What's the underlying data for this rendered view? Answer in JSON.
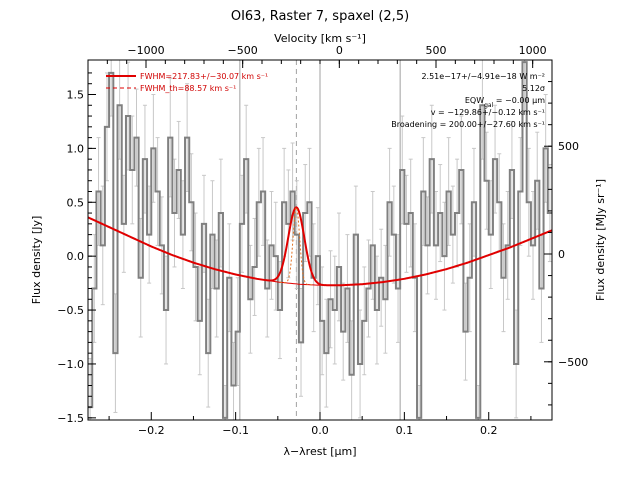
{
  "chart_data": {
    "type": "line",
    "title": "OI63, Raster 7, spaxel (2,5)",
    "xlabel": "λ−λrest [μm]",
    "ylabel": "Flux density [Jy]",
    "y2label": "Flux density [MJy sr⁻¹]",
    "x2label": "Velocity [km s⁻¹]",
    "xlim": [
      -0.275,
      0.275
    ],
    "ylim": [
      -1.52,
      1.82
    ],
    "y2lim": [
      -770,
      900
    ],
    "x2lim": [
      -1300,
      1100
    ],
    "x_ticks": [
      -0.2,
      -0.1,
      0.0,
      0.1,
      0.2
    ],
    "x_tick_labels": [
      "−0.2",
      "−0.1",
      "0.0",
      "0.1",
      "0.2"
    ],
    "y_ticks": [
      -1.5,
      -1.0,
      -0.5,
      0.0,
      0.5,
      1.0,
      1.5
    ],
    "y_tick_labels": [
      "−1.5",
      "−1.0",
      "−0.5",
      "0.0",
      "0.5",
      "1.0",
      "1.5"
    ],
    "y2_ticks": [
      -500,
      0,
      500
    ],
    "y2_tick_labels": [
      "−500",
      "0",
      "500"
    ],
    "x2_ticks": [
      -1000,
      -500,
      0,
      500,
      1000
    ],
    "x2_tick_labels": [
      "−1000",
      "−500",
      "0",
      "500",
      "1000"
    ],
    "vlines": [
      -0.095,
      0.0,
      0.095
    ],
    "dashed_vline": -0.028,
    "annotations": [
      "2.51e−17+/−4.91e−18 W m⁻²",
      "5.12σ",
      "EQW = −0.00 μm",
      "v = −129.86+/−0.12 km s⁻¹",
      "Broadening = 200.00+/−27.60 km s⁻¹"
    ],
    "eqw_subscript": "gal",
    "legend": [
      {
        "label": "FWHM=217.83+/−30.07 km s⁻¹",
        "style": "solid",
        "color": "#e00000"
      },
      {
        "label": "FWHM_th=88.57 km s⁻¹",
        "style": "dashed",
        "color": "#e00000"
      }
    ],
    "series": [
      {
        "style": "histogram",
        "color": "#808080",
        "x": [
          -0.275,
          -0.27,
          -0.265,
          -0.26,
          -0.255,
          -0.25,
          -0.245,
          -0.24,
          -0.235,
          -0.23,
          -0.225,
          -0.22,
          -0.215,
          -0.21,
          -0.205,
          -0.2,
          -0.195,
          -0.19,
          -0.185,
          -0.18,
          -0.175,
          -0.17,
          -0.165,
          -0.16,
          -0.155,
          -0.15,
          -0.145,
          -0.14,
          -0.135,
          -0.13,
          -0.125,
          -0.12,
          -0.115,
          -0.11,
          -0.105,
          -0.1,
          -0.095,
          -0.09,
          -0.085,
          -0.08,
          -0.075,
          -0.07,
          -0.065,
          -0.06,
          -0.055,
          -0.05,
          -0.045,
          -0.04,
          -0.035,
          -0.03,
          -0.025,
          -0.02,
          -0.015,
          -0.01,
          -0.005,
          0.0,
          0.005,
          0.01,
          0.015,
          0.02,
          0.025,
          0.03,
          0.035,
          0.04,
          0.045,
          0.05,
          0.055,
          0.06,
          0.065,
          0.07,
          0.075,
          0.08,
          0.085,
          0.09,
          0.095,
          0.1,
          0.105,
          0.11,
          0.115,
          0.12,
          0.125,
          0.13,
          0.135,
          0.14,
          0.145,
          0.15,
          0.155,
          0.16,
          0.165,
          0.17,
          0.175,
          0.18,
          0.185,
          0.19,
          0.195,
          0.2,
          0.205,
          0.21,
          0.215,
          0.22,
          0.225,
          0.23,
          0.235,
          0.24,
          0.245,
          0.25,
          0.255,
          0.26,
          0.265,
          0.27
        ],
        "values": [
          -1.4,
          -0.3,
          0.6,
          0.1,
          1.2,
          1.7,
          -0.9,
          1.4,
          0.3,
          1.3,
          0.8,
          1.1,
          -0.2,
          0.9,
          0.2,
          1.0,
          0.6,
          0.1,
          -0.5,
          1.1,
          0.4,
          0.8,
          0.2,
          1.1,
          0.5,
          -0.1,
          -0.6,
          0.3,
          -0.9,
          0.2,
          -0.3,
          0.4,
          -1.5,
          -0.2,
          -1.2,
          -0.7,
          0.3,
          0.9,
          -0.4,
          -0.1,
          0.5,
          0.6,
          -0.3,
          0.1,
          0.0,
          -0.5,
          0.5,
          0.3,
          0.6,
          0.2,
          -0.8,
          0.4,
          0.5,
          -0.2,
          0.0,
          -0.6,
          -0.9,
          -0.4,
          -0.5,
          -0.1,
          -0.7,
          -0.3,
          -1.1,
          0.2,
          -1.0,
          -0.6,
          -0.3,
          0.1,
          -0.5,
          -0.2,
          -0.4,
          0.5,
          0.2,
          -0.3,
          0.8,
          0.3,
          0.4,
          -0.2,
          -1.5,
          0.6,
          0.1,
          0.9,
          0.1,
          0.4,
          0.0,
          0.6,
          0.2,
          0.4,
          0.8,
          -0.7,
          -0.2,
          0.5,
          -1.5,
          1.4,
          0.7,
          0.2,
          0.9,
          0.5,
          -0.2,
          0.1,
          0.8,
          -1.0,
          0.6,
          1.8,
          0.5,
          0.1,
          0.7,
          -0.3,
          1.0,
          0.4
        ],
        "errors": [
          0.45,
          0.5,
          0.5,
          0.55,
          0.5,
          0.4,
          0.55,
          0.5,
          0.45,
          0.5,
          0.5,
          0.45,
          0.55,
          0.5,
          0.45,
          0.5,
          0.5,
          0.45,
          0.5,
          0.55,
          0.5,
          0.45,
          0.5,
          0.5,
          0.45,
          0.5,
          0.5,
          0.45,
          0.5,
          0.5,
          0.45,
          0.5,
          0.3,
          0.5,
          0.4,
          0.5,
          0.45,
          0.5,
          0.5,
          0.45,
          0.5,
          0.5,
          0.45,
          0.5,
          0.5,
          0.45,
          0.5,
          0.5,
          0.45,
          0.5,
          0.5,
          0.45,
          0.5,
          0.5,
          0.45,
          0.5,
          0.5,
          0.45,
          0.5,
          0.5,
          0.45,
          0.5,
          0.5,
          0.45,
          0.5,
          0.5,
          0.45,
          0.5,
          0.5,
          0.45,
          0.5,
          0.5,
          0.45,
          0.5,
          0.5,
          0.45,
          0.5,
          0.5,
          0.3,
          0.5,
          0.45,
          0.5,
          0.5,
          0.45,
          0.5,
          0.5,
          0.45,
          0.5,
          0.5,
          0.45,
          0.5,
          0.5,
          0.3,
          0.5,
          0.45,
          0.5,
          0.5,
          0.45,
          0.5,
          0.5,
          0.45,
          0.5,
          0.5,
          0.45,
          0.5,
          0.5,
          0.45,
          0.5,
          0.5,
          0.45
        ]
      },
      {
        "style": "continuum",
        "color": "#e00000",
        "x": [
          -0.275,
          -0.25,
          -0.225,
          -0.2,
          -0.175,
          -0.15,
          -0.125,
          -0.1,
          -0.075,
          -0.05,
          -0.025,
          0.0,
          0.025,
          0.05,
          0.075,
          0.1,
          0.125,
          0.15,
          0.175,
          0.2,
          0.225,
          0.25,
          0.275
        ],
        "values": [
          0.36,
          0.27,
          0.18,
          0.09,
          0.01,
          -0.06,
          -0.12,
          -0.17,
          -0.21,
          -0.24,
          -0.26,
          -0.27,
          -0.27,
          -0.26,
          -0.24,
          -0.21,
          -0.17,
          -0.12,
          -0.06,
          0.01,
          0.08,
          0.16,
          0.24
        ]
      },
      {
        "style": "fit",
        "color": "#e00000",
        "center": -0.028,
        "amplitude": 0.71,
        "sigma": 0.0095
      },
      {
        "style": "thermal",
        "color": "#e07020",
        "center": -0.028,
        "amplitude": 0.71,
        "sigma": 0.0039
      }
    ]
  }
}
